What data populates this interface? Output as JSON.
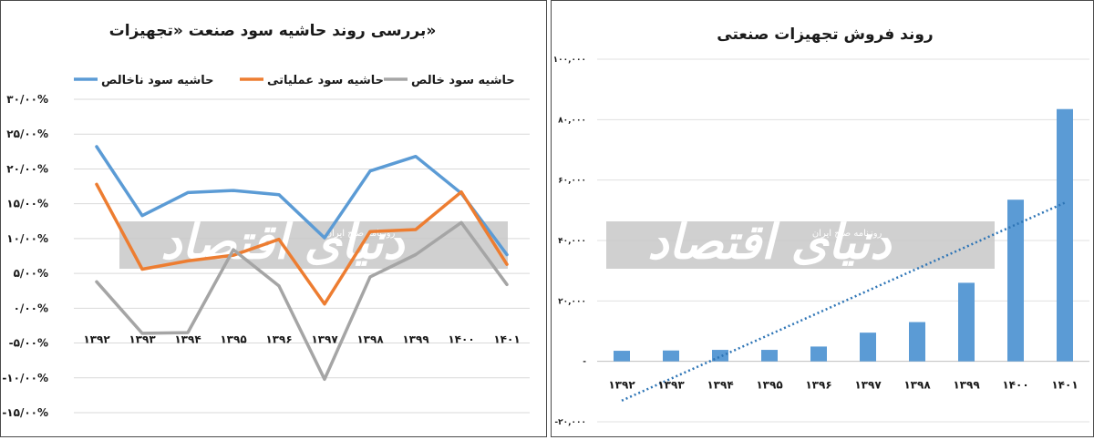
{
  "watermark": {
    "main": "دنیای اقتصاد",
    "sub": "روزنامه صبح ایران"
  },
  "chart_data": [
    {
      "type": "line",
      "title": "بررسی روند حاشیه سود صنعت «تجهیزات»",
      "categories": [
        "۱۳۹۲",
        "۱۳۹۳",
        "۱۳۹۴",
        "۱۳۹۵",
        "۱۳۹۶",
        "۱۳۹۷",
        "۱۳۹۸",
        "۱۳۹۹",
        "۱۴۰۰",
        "۱۴۰۱"
      ],
      "series": [
        {
          "name": "حاشیه سود ناخالص",
          "color": "#5b9bd5",
          "values": [
            23.2,
            13.3,
            16.6,
            16.9,
            16.3,
            10.1,
            19.7,
            21.8,
            16.5,
            7.7
          ]
        },
        {
          "name": "حاشیه سود عملیاتی",
          "color": "#ed7d31",
          "values": [
            17.8,
            5.6,
            6.8,
            7.6,
            9.9,
            0.6,
            11.0,
            11.3,
            16.7,
            6.3
          ]
        },
        {
          "name": "حاشیه سود خالص",
          "color": "#a5a5a5",
          "values": [
            3.8,
            -3.6,
            -3.5,
            8.4,
            3.2,
            -10.2,
            4.5,
            7.7,
            12.3,
            3.4
          ]
        }
      ],
      "ylim": [
        -15,
        30
      ],
      "yticks": [
        -15,
        -10,
        -5,
        0,
        5,
        10,
        15,
        20,
        25,
        30
      ],
      "ytick_labels": [
        "-۱۵/۰۰%",
        "-۱۰/۰۰%",
        "-۵/۰۰%",
        "۰/۰۰%",
        "۵/۰۰%",
        "۱۰/۰۰%",
        "۱۵/۰۰%",
        "۲۰/۰۰%",
        "۲۵/۰۰%",
        "۳۰/۰۰%"
      ],
      "grid": true,
      "legend": "top"
    },
    {
      "type": "bar",
      "title": "روند فروش تجهیزات صنعتی",
      "categories": [
        "۱۳۹۲",
        "۱۳۹۳",
        "۱۳۹۴",
        "۱۳۹۵",
        "۱۳۹۶",
        "۱۳۹۷",
        "۱۳۹۸",
        "۱۳۹۹",
        "۱۴۰۰",
        "۱۴۰۱"
      ],
      "values": [
        3500,
        3600,
        3800,
        3800,
        4900,
        9500,
        13000,
        26000,
        53500,
        83500
      ],
      "color": "#5b9bd5",
      "trendline": {
        "style": "dotted",
        "color": "#2e75b6",
        "start": -13000,
        "end": 52500
      },
      "ylim": [
        -20000,
        100000
      ],
      "yticks": [
        -20000,
        0,
        20000,
        40000,
        60000,
        80000,
        100000
      ],
      "ytick_labels": [
        "-۲۰,۰۰۰",
        "-",
        "۲۰,۰۰۰",
        "۴۰,۰۰۰",
        "۶۰,۰۰۰",
        "۸۰,۰۰۰",
        "۱۰۰,۰۰۰"
      ],
      "grid": true
    }
  ]
}
